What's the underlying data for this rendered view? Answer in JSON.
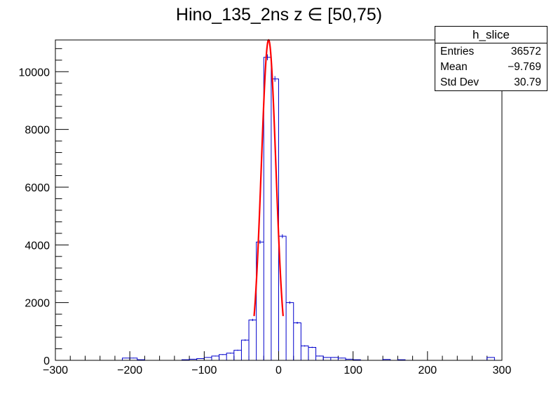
{
  "title": "Hino_135_2ns z  ∈ [50,75)",
  "stats": {
    "name": "h_slice",
    "rows": [
      {
        "label": "Entries",
        "value": "36572"
      },
      {
        "label": "Mean",
        "value": "−9.769"
      },
      {
        "label": "Std Dev",
        "value": "30.79"
      }
    ]
  },
  "colors": {
    "histogram": "#0000cc",
    "fit": "#ff0000",
    "axis": "#000000"
  },
  "chart_data": {
    "type": "histogram",
    "xlim": [
      -300,
      300
    ],
    "ylim": [
      0,
      11100
    ],
    "x_ticks": [
      "−300",
      "−200",
      "−100",
      "0",
      "100",
      "200",
      "300"
    ],
    "x_tick_values": [
      -300,
      -200,
      -100,
      0,
      100,
      200,
      300
    ],
    "y_ticks": [
      "0",
      "2000",
      "4000",
      "6000",
      "8000",
      "10000"
    ],
    "y_tick_values": [
      0,
      2000,
      4000,
      6000,
      8000,
      10000
    ],
    "bin_width": 10,
    "bins": [
      {
        "x": -210,
        "value": 80
      },
      {
        "x": -200,
        "value": 80
      },
      {
        "x": -190,
        "value": 20
      },
      {
        "x": -130,
        "value": 20
      },
      {
        "x": -120,
        "value": 40
      },
      {
        "x": -110,
        "value": 60
      },
      {
        "x": -100,
        "value": 100
      },
      {
        "x": -90,
        "value": 150
      },
      {
        "x": -80,
        "value": 200
      },
      {
        "x": -70,
        "value": 250
      },
      {
        "x": -60,
        "value": 350
      },
      {
        "x": -50,
        "value": 700
      },
      {
        "x": -40,
        "value": 1400
      },
      {
        "x": -30,
        "value": 4100
      },
      {
        "x": -20,
        "value": 10500
      },
      {
        "x": -10,
        "value": 9750
      },
      {
        "x": 0,
        "value": 4300
      },
      {
        "x": 10,
        "value": 2000
      },
      {
        "x": 20,
        "value": 1300
      },
      {
        "x": 30,
        "value": 500
      },
      {
        "x": 40,
        "value": 450
      },
      {
        "x": 50,
        "value": 150
      },
      {
        "x": 60,
        "value": 100
      },
      {
        "x": 70,
        "value": 100
      },
      {
        "x": 80,
        "value": 80
      },
      {
        "x": 90,
        "value": 40
      },
      {
        "x": 100,
        "value": 20
      },
      {
        "x": 140,
        "value": 30
      },
      {
        "x": 160,
        "value": 20
      },
      {
        "x": 280,
        "value": 100
      }
    ],
    "fit": {
      "type": "gaussian",
      "amplitude": 11100,
      "mean": -13.5,
      "sigma": 9.8,
      "range": [
        -33,
        6
      ]
    }
  }
}
